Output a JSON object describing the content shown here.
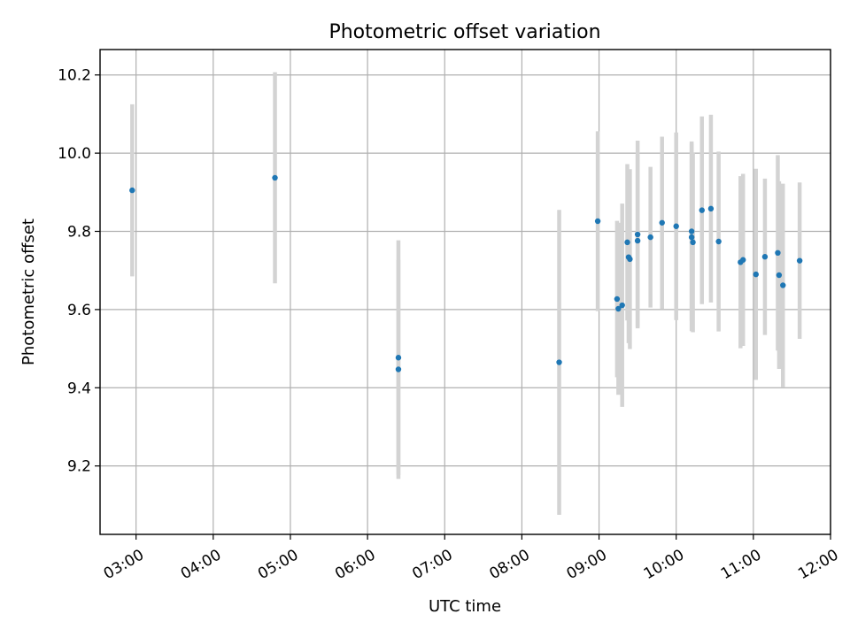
{
  "chart_data": {
    "type": "scatter",
    "title": "Photometric offset variation",
    "xlabel": "UTC time",
    "ylabel": "Photometric offset",
    "x_unit": "UTC clock time (hours)",
    "xlim": [
      "02:32",
      "12:00"
    ],
    "ylim": [
      9.025,
      10.265
    ],
    "x_ticks": [
      "03:00",
      "04:00",
      "05:00",
      "06:00",
      "07:00",
      "08:00",
      "09:00",
      "10:00",
      "11:00",
      "12:00"
    ],
    "y_ticks": [
      "9.2",
      "9.4",
      "9.6",
      "9.8",
      "10.0",
      "10.2"
    ],
    "grid": true,
    "marker_color": "#1f77b4",
    "errorbar_color": "#d3d3d3",
    "points": [
      {
        "x": "02:57",
        "y": 9.905,
        "err": 0.22
      },
      {
        "x": "04:48",
        "y": 9.937,
        "err": 0.27
      },
      {
        "x": "06:24",
        "y": 9.477,
        "err": 0.3
      },
      {
        "x": "06:24",
        "y": 9.447,
        "err": 0.28
      },
      {
        "x": "08:29",
        "y": 9.465,
        "err": 0.39
      },
      {
        "x": "08:59",
        "y": 9.826,
        "err": 0.23
      },
      {
        "x": "09:14",
        "y": 9.627,
        "err": 0.2
      },
      {
        "x": "09:15",
        "y": 9.602,
        "err": 0.22
      },
      {
        "x": "09:18",
        "y": 9.611,
        "err": 0.26
      },
      {
        "x": "09:22",
        "y": 9.772,
        "err": 0.2
      },
      {
        "x": "09:23",
        "y": 9.734,
        "err": 0.22
      },
      {
        "x": "09:24",
        "y": 9.729,
        "err": 0.23
      },
      {
        "x": "09:30",
        "y": 9.792,
        "err": 0.24
      },
      {
        "x": "09:30",
        "y": 9.776,
        "err": 0.22
      },
      {
        "x": "09:40",
        "y": 9.785,
        "err": 0.18
      },
      {
        "x": "09:49",
        "y": 9.822,
        "err": 0.22
      },
      {
        "x": "10:00",
        "y": 9.813,
        "err": 0.24
      },
      {
        "x": "10:12",
        "y": 9.8,
        "err": 0.23
      },
      {
        "x": "10:12",
        "y": 9.785,
        "err": 0.24
      },
      {
        "x": "10:13",
        "y": 9.772,
        "err": 0.23
      },
      {
        "x": "10:20",
        "y": 9.854,
        "err": 0.24
      },
      {
        "x": "10:27",
        "y": 9.858,
        "err": 0.24
      },
      {
        "x": "10:33",
        "y": 9.774,
        "err": 0.23
      },
      {
        "x": "10:50",
        "y": 9.721,
        "err": 0.22
      },
      {
        "x": "10:52",
        "y": 9.727,
        "err": 0.22
      },
      {
        "x": "11:02",
        "y": 9.69,
        "err": 0.27
      },
      {
        "x": "11:09",
        "y": 9.735,
        "err": 0.2
      },
      {
        "x": "11:19",
        "y": 9.745,
        "err": 0.25
      },
      {
        "x": "11:20",
        "y": 9.688,
        "err": 0.24
      },
      {
        "x": "11:23",
        "y": 9.662,
        "err": 0.26
      },
      {
        "x": "11:36",
        "y": 9.725,
        "err": 0.2
      }
    ]
  }
}
